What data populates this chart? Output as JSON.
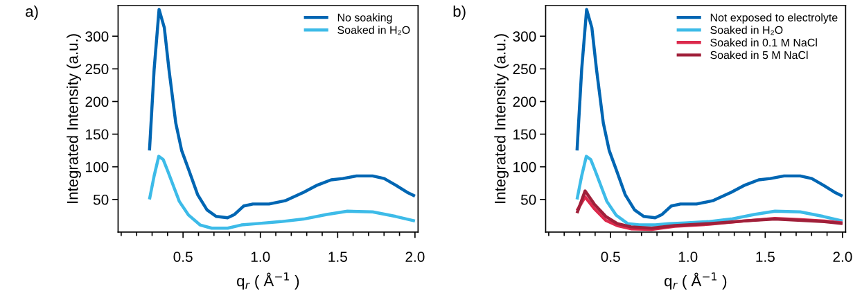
{
  "chart_data": [
    {
      "type": "line",
      "title": "a)",
      "xlabel": "q$_{r}$ ( Å$^{−1}$ )",
      "ylabel": "Integrated Intensity (a.u.)",
      "xlim": [
        0.08,
        2.02
      ],
      "ylim": [
        0,
        347
      ],
      "xticks": [
        {
          "value": 0.1,
          "label": null
        },
        {
          "value": 0.2,
          "label": null
        },
        {
          "value": 0.3,
          "label": null
        },
        {
          "value": 0.4,
          "label": null
        },
        {
          "value": 0.5,
          "label": "0.5"
        },
        {
          "value": 0.6,
          "label": null
        },
        {
          "value": 0.7,
          "label": null
        },
        {
          "value": 0.8,
          "label": null
        },
        {
          "value": 0.9,
          "label": null
        },
        {
          "value": 1.0,
          "label": "1.0"
        },
        {
          "value": 1.1,
          "label": null
        },
        {
          "value": 1.2,
          "label": null
        },
        {
          "value": 1.3,
          "label": null
        },
        {
          "value": 1.4,
          "label": null
        },
        {
          "value": 1.5,
          "label": "1.5"
        },
        {
          "value": 1.6,
          "label": null
        },
        {
          "value": 1.7,
          "label": null
        },
        {
          "value": 1.8,
          "label": null
        },
        {
          "value": 1.9,
          "label": null
        },
        {
          "value": 2.0,
          "label": "2.0"
        }
      ],
      "yticks": [
        50,
        100,
        150,
        200,
        250,
        300
      ],
      "legend": "top right",
      "grid": false,
      "marker": "none",
      "line_style": "solid",
      "series": [
        {
          "name": "No soaking",
          "color": "#0066b3",
          "x": [
            0.283,
            0.313,
            0.345,
            0.379,
            0.409,
            0.453,
            0.491,
            0.536,
            0.595,
            0.655,
            0.714,
            0.788,
            0.833,
            0.893,
            0.952,
            1.056,
            1.16,
            1.28,
            1.369,
            1.458,
            1.533,
            1.622,
            1.726,
            1.801,
            1.875,
            1.949,
            2.0
          ],
          "values": [
            125,
            249,
            341,
            313,
            249,
            167,
            125,
            96,
            57,
            34,
            24,
            22,
            27,
            40,
            43,
            43,
            48,
            61,
            72,
            80,
            82,
            86,
            86,
            82,
            72,
            61,
            55
          ]
        },
        {
          "name": "Soaked in H₂O",
          "color": "#3dbbe8",
          "x": [
            0.283,
            0.313,
            0.343,
            0.372,
            0.402,
            0.447,
            0.476,
            0.536,
            0.61,
            0.685,
            0.789,
            0.878,
            0.982,
            1.131,
            1.28,
            1.429,
            1.563,
            1.726,
            1.875,
            2.0
          ],
          "values": [
            50,
            86,
            116,
            111,
            93,
            65,
            47,
            26,
            11,
            6,
            6,
            11,
            13,
            16,
            20,
            27,
            32,
            31,
            24,
            17
          ]
        }
      ]
    },
    {
      "type": "line",
      "title": "b)",
      "xlabel": "q$_{r}$ ( Å$^{−1}$ )",
      "ylabel": "Integrated Intensity (a.u.)",
      "xlim": [
        0.08,
        2.02
      ],
      "ylim": [
        0,
        347
      ],
      "xticks": [
        {
          "value": 0.1,
          "label": null
        },
        {
          "value": 0.2,
          "label": null
        },
        {
          "value": 0.3,
          "label": null
        },
        {
          "value": 0.4,
          "label": null
        },
        {
          "value": 0.5,
          "label": "0.5"
        },
        {
          "value": 0.6,
          "label": null
        },
        {
          "value": 0.7,
          "label": null
        },
        {
          "value": 0.8,
          "label": null
        },
        {
          "value": 0.9,
          "label": null
        },
        {
          "value": 1.0,
          "label": "1.0"
        },
        {
          "value": 1.1,
          "label": null
        },
        {
          "value": 1.2,
          "label": null
        },
        {
          "value": 1.3,
          "label": null
        },
        {
          "value": 1.4,
          "label": null
        },
        {
          "value": 1.5,
          "label": "1.5"
        },
        {
          "value": 1.6,
          "label": null
        },
        {
          "value": 1.7,
          "label": null
        },
        {
          "value": 1.8,
          "label": null
        },
        {
          "value": 1.9,
          "label": null
        },
        {
          "value": 2.0,
          "label": "2.0"
        }
      ],
      "yticks": [
        50,
        100,
        150,
        200,
        250,
        300
      ],
      "legend": "top right",
      "grid": false,
      "marker": "none",
      "line_style": "solid",
      "series": [
        {
          "name": "Not exposed to electrolyte",
          "color": "#0066b3",
          "x": [
            0.283,
            0.313,
            0.345,
            0.379,
            0.409,
            0.453,
            0.491,
            0.536,
            0.595,
            0.655,
            0.714,
            0.788,
            0.833,
            0.893,
            0.952,
            1.056,
            1.16,
            1.28,
            1.369,
            1.458,
            1.533,
            1.622,
            1.726,
            1.801,
            1.875,
            1.949,
            2.0
          ],
          "values": [
            125,
            249,
            341,
            313,
            249,
            167,
            125,
            96,
            57,
            34,
            24,
            22,
            27,
            40,
            43,
            43,
            48,
            61,
            72,
            80,
            82,
            86,
            86,
            82,
            72,
            61,
            55
          ]
        },
        {
          "name": "Soaked in H₂O",
          "color": "#3dbbe8",
          "x": [
            0.283,
            0.313,
            0.343,
            0.372,
            0.402,
            0.447,
            0.476,
            0.536,
            0.61,
            0.685,
            0.789,
            0.878,
            0.982,
            1.131,
            1.28,
            1.429,
            1.563,
            1.726,
            1.875,
            2.0
          ],
          "values": [
            50,
            86,
            116,
            111,
            93,
            65,
            47,
            26,
            13,
            11,
            11,
            13,
            14,
            16,
            20,
            27,
            32,
            31,
            24,
            17
          ]
        },
        {
          "name": "Soaked in 0.1 M NaCl",
          "color": "#dc2a4c",
          "x": [
            0.283,
            0.335,
            0.394,
            0.469,
            0.543,
            0.632,
            0.766,
            0.915,
            1.138,
            1.361,
            1.562,
            1.734,
            1.882,
            2.0
          ],
          "values": [
            33,
            54,
            36,
            18,
            10,
            5,
            4,
            9,
            12,
            17,
            21,
            19,
            17,
            14
          ]
        },
        {
          "name": "Soaked in 5 M NaCl",
          "color": "#a0203a",
          "x": [
            0.283,
            0.335,
            0.394,
            0.469,
            0.543,
            0.632,
            0.766,
            0.915,
            1.138,
            1.361,
            1.562,
            1.734,
            1.882,
            2.0
          ],
          "values": [
            29,
            63,
            43,
            24,
            13,
            8,
            6,
            10,
            13,
            17,
            20,
            18,
            16,
            13
          ]
        }
      ]
    }
  ]
}
